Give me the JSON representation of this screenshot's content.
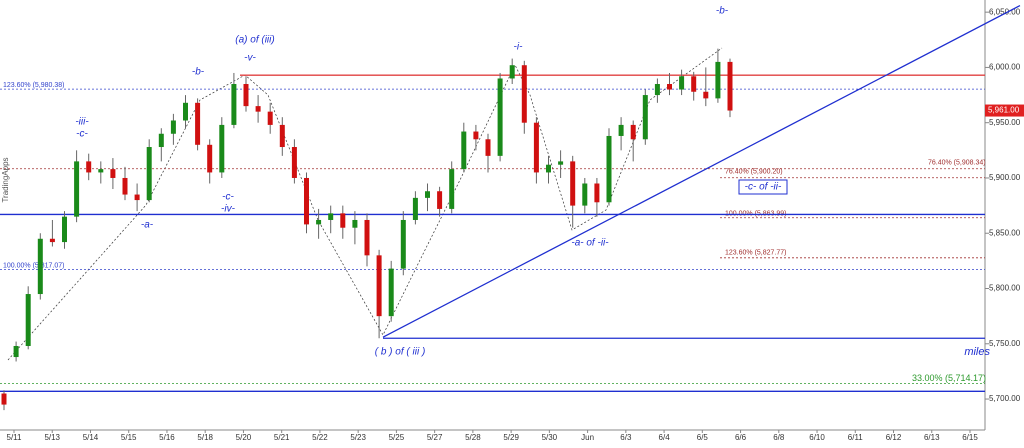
{
  "chart_data": {
    "type": "candlestick",
    "watermark": "TradingApps",
    "axis_note": "miles",
    "categories": [
      "5/11",
      "5/13",
      "5/14",
      "5/15",
      "5/16",
      "5/18",
      "5/20",
      "5/21",
      "5/22",
      "5/23",
      "5/25",
      "5/27",
      "5/28",
      "5/29",
      "5/30",
      "Jun",
      "6/3",
      "6/4",
      "6/5",
      "6/6",
      "6/8",
      "6/10",
      "6/11",
      "6/12",
      "6/13",
      "6/15"
    ],
    "ylim": [
      5672,
      6061
    ],
    "yticks": [
      {
        "value": 5700,
        "label": "5,700.00"
      },
      {
        "value": 5750,
        "label": "5,750.00"
      },
      {
        "value": 5800,
        "label": "5,800.00"
      },
      {
        "value": 5850,
        "label": "5,850.00"
      },
      {
        "value": 5900,
        "label": "5,900.00"
      },
      {
        "value": 5950,
        "label": "5,950.00"
      },
      {
        "value": 6000,
        "label": "6,000.00"
      },
      {
        "value": 6050,
        "label": "6,050.00"
      }
    ],
    "up_color": "#1a8a1a",
    "down_color": "#d01010",
    "candles": [
      [
        5705,
        5708,
        5690,
        5695
      ],
      [
        5738,
        5752,
        5734,
        5748
      ],
      [
        5748,
        5802,
        5745,
        5795
      ],
      [
        5795,
        5850,
        5790,
        5845
      ],
      [
        5845,
        5862,
        5838,
        5842
      ],
      [
        5842,
        5870,
        5836,
        5865
      ],
      [
        5865,
        5925,
        5860,
        5915
      ],
      [
        5915,
        5922,
        5898,
        5905
      ],
      [
        5905,
        5915,
        5895,
        5908
      ],
      [
        5908,
        5918,
        5890,
        5900
      ],
      [
        5900,
        5910,
        5880,
        5885
      ],
      [
        5885,
        5895,
        5870,
        5880
      ],
      [
        5880,
        5935,
        5878,
        5928
      ],
      [
        5928,
        5945,
        5915,
        5940
      ],
      [
        5940,
        5958,
        5930,
        5952
      ],
      [
        5952,
        5975,
        5945,
        5968
      ],
      [
        5968,
        5972,
        5925,
        5930
      ],
      [
        5930,
        5935,
        5895,
        5905
      ],
      [
        5905,
        5955,
        5900,
        5948
      ],
      [
        5948,
        5995,
        5945,
        5985
      ],
      [
        5985,
        5992,
        5960,
        5965
      ],
      [
        5965,
        5975,
        5950,
        5960
      ],
      [
        5960,
        5968,
        5940,
        5948
      ],
      [
        5948,
        5955,
        5920,
        5928
      ],
      [
        5928,
        5935,
        5895,
        5900
      ],
      [
        5900,
        5905,
        5850,
        5858
      ],
      [
        5858,
        5872,
        5845,
        5862
      ],
      [
        5862,
        5875,
        5850,
        5868
      ],
      [
        5868,
        5875,
        5845,
        5855
      ],
      [
        5855,
        5870,
        5840,
        5862
      ],
      [
        5862,
        5868,
        5820,
        5830
      ],
      [
        5830,
        5835,
        5755,
        5775
      ],
      [
        5775,
        5825,
        5770,
        5818
      ],
      [
        5818,
        5870,
        5812,
        5862
      ],
      [
        5862,
        5888,
        5858,
        5882
      ],
      [
        5882,
        5895,
        5870,
        5888
      ],
      [
        5888,
        5892,
        5865,
        5872
      ],
      [
        5872,
        5915,
        5868,
        5908
      ],
      [
        5908,
        5950,
        5905,
        5942
      ],
      [
        5942,
        5948,
        5925,
        5935
      ],
      [
        5935,
        5940,
        5905,
        5920
      ],
      [
        5920,
        5995,
        5915,
        5990
      ],
      [
        5990,
        6008,
        5985,
        6002
      ],
      [
        6002,
        6006,
        5940,
        5950
      ],
      [
        5950,
        5955,
        5895,
        5905
      ],
      [
        5905,
        5920,
        5895,
        5912
      ],
      [
        5912,
        5925,
        5900,
        5915
      ],
      [
        5915,
        5920,
        5855,
        5875
      ],
      [
        5875,
        5900,
        5868,
        5895
      ],
      [
        5895,
        5900,
        5865,
        5878
      ],
      [
        5878,
        5945,
        5875,
        5938
      ],
      [
        5938,
        5955,
        5925,
        5948
      ],
      [
        5948,
        5952,
        5915,
        5935
      ],
      [
        5935,
        5980,
        5930,
        5975
      ],
      [
        5975,
        5990,
        5968,
        5985
      ],
      [
        5985,
        5995,
        5975,
        5980
      ],
      [
        5980,
        5998,
        5975,
        5992
      ],
      [
        5992,
        5996,
        5970,
        5978
      ],
      [
        5978,
        6000,
        5965,
        5972
      ],
      [
        5972,
        6017,
        5968,
        6005
      ],
      [
        6005,
        6008,
        5955,
        5961
      ]
    ],
    "current_price": {
      "value": 5961,
      "label": "5,961.00"
    },
    "levels": [
      {
        "value": 5867,
        "color": "#1f2fd0"
      },
      {
        "value": 5755,
        "color": "#1f2fd0"
      },
      {
        "value": 5707,
        "color": "#1f2fd0"
      },
      {
        "value": 5993,
        "color": "#e04040"
      }
    ],
    "trend_line": {
      "color": "#1f2fd0",
      "values": [
        5756,
        6056
      ]
    },
    "fib_levels": [
      {
        "label": "123.60% (5,980.38)",
        "value": 5980.38,
        "color": "#3344cc"
      },
      {
        "label": "100.00% (5,817.07)",
        "value": 5817.07,
        "color": "#3344cc"
      },
      {
        "label": "76.40% (5,908.34)",
        "value": 5908.34,
        "color": "#a03030"
      },
      {
        "label": "76.40% (5,900.20)",
        "value": 5900.2,
        "color": "#a03030"
      },
      {
        "label": "100.00% (5,863.99)",
        "value": 5863.99,
        "color": "#a03030"
      },
      {
        "label": "123.60% (5,827.77)",
        "value": 5827.77,
        "color": "#a03030"
      },
      {
        "label": "33.00% (5,714.17)",
        "value": 5714.17,
        "color": "#2e9a2e"
      }
    ],
    "wave_labels": [
      "(a) of (iii)",
      "-v-",
      "-b-",
      "-iii-",
      "-c-",
      "-a-",
      "-c-",
      "-iv-",
      "( b ) of ( iii )",
      "-i-",
      "-a- of -ii-",
      "-b-",
      "-c- of -ii-"
    ]
  }
}
